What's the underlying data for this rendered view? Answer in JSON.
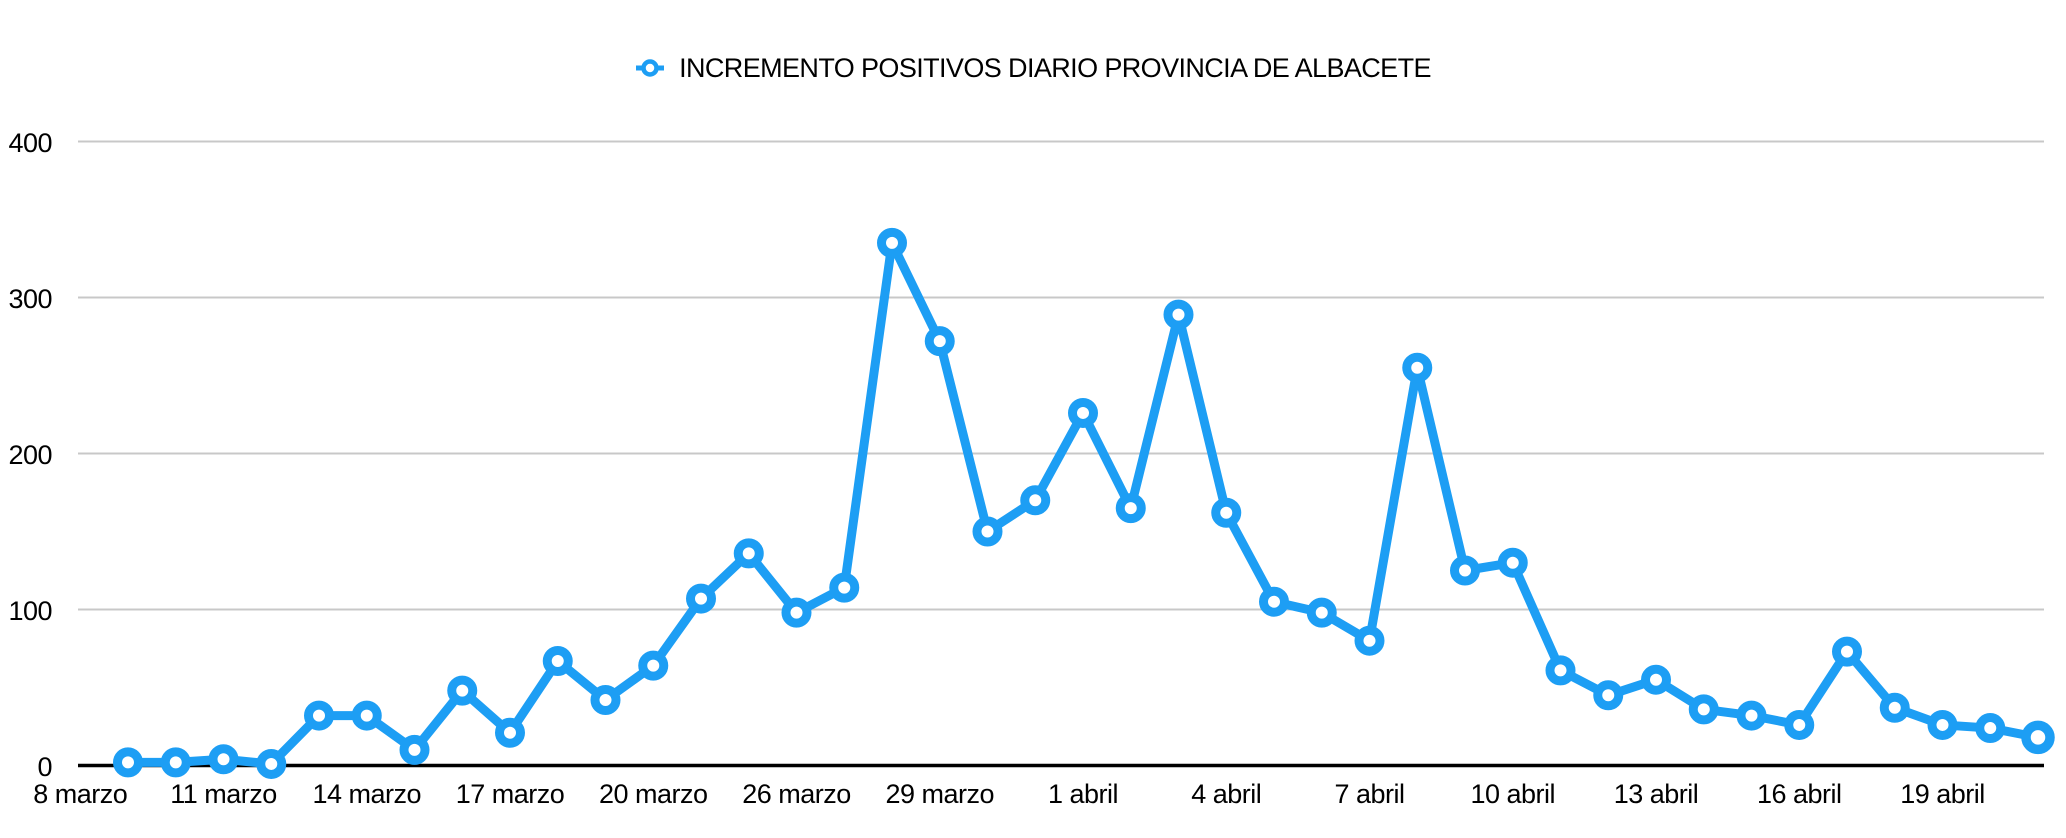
{
  "colors": {
    "series": "#1d9ef4",
    "gridline": "#c8c8c8",
    "axis": "#000000",
    "text": "#000000",
    "background": "#ffffff"
  },
  "legend": {
    "marker_icon": "open-circle-on-line",
    "position": "top-center"
  },
  "chart_data": {
    "type": "line",
    "title": "INCREMENTO POSITIVOS DIARIO PROVINCIA DE ALBACETE",
    "series": [
      {
        "name": "INCREMENTO POSITIVOS DIARIO PROVINCIA DE ALBACETE",
        "values": [
          2,
          2,
          4,
          1,
          32,
          32,
          10,
          48,
          21,
          67,
          42,
          64,
          107,
          136,
          98,
          114,
          335,
          272,
          150,
          170,
          226,
          165,
          289,
          162,
          105,
          98,
          80,
          255,
          125,
          130,
          61,
          45,
          55,
          36,
          32,
          26,
          73,
          37,
          26,
          24,
          18
        ]
      }
    ],
    "x_tick_labels": [
      "8 marzo",
      "11 marzo",
      "14 marzo",
      "17 marzo",
      "20 marzo",
      "26 marzo",
      "29 marzo",
      "1 abril",
      "4 abril",
      "7 abril",
      "10 abril",
      "13 abril",
      "16 abril",
      "19 abril"
    ],
    "x_tick_step": 3,
    "x_first_tick_category_offset": -1,
    "y_tick_labels": [
      "0",
      "100",
      "200",
      "300",
      "400"
    ],
    "yticks": [
      0,
      100,
      200,
      300,
      400
    ],
    "ylim": [
      0,
      400
    ],
    "grid": "horizontal",
    "legend_position": "top-center",
    "marker": "open-circle",
    "last_point_marker": "open-circle-large"
  }
}
